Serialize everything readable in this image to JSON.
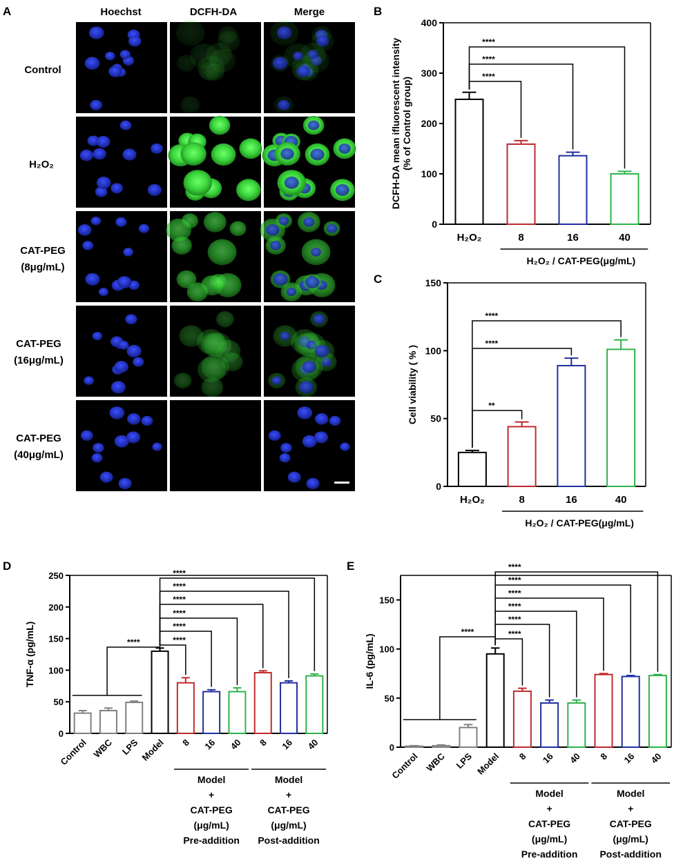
{
  "panel_letters": [
    "A",
    "B",
    "C",
    "D",
    "E"
  ],
  "microscopy": {
    "column_headers": [
      "Hoechst",
      "DCFH-DA",
      "Merge"
    ],
    "row_labels": [
      [
        "Control",
        ""
      ],
      [
        "H₂O₂",
        ""
      ],
      [
        "CAT-PEG",
        "(8μg/mL)"
      ],
      [
        "CAT-PEG",
        "(16μg/mL)"
      ],
      [
        "CAT-PEG",
        "(40μg/mL)"
      ]
    ],
    "green_intensity": [
      0.12,
      1.0,
      0.6,
      0.3,
      0.0
    ],
    "colors": {
      "nucleus": "#1a2ccc",
      "dcfh": "#3ad43a",
      "background": "#000000"
    }
  },
  "chart_data": [
    {
      "id": "B",
      "type": "bar",
      "categories": [
        "H₂O₂",
        "8",
        "16",
        "40"
      ],
      "values": [
        248,
        159,
        136,
        100
      ],
      "errors": [
        14,
        7,
        7,
        5
      ],
      "colors": [
        "#000000",
        "#c0282d",
        "#1f2e9e",
        "#2db34a"
      ],
      "ylabel": "DCFH-DA mean ifluorescent intensity",
      "ylabel2": "(% of Control group)",
      "ylim": [
        0,
        400
      ],
      "yticks": [
        0,
        100,
        200,
        300,
        400
      ],
      "group_label": "H₂O₂ / CAT-PEG(μg/mL)",
      "significance": [
        {
          "from": 0,
          "to": 1,
          "label": "****"
        },
        {
          "from": 0,
          "to": 2,
          "label": "****"
        },
        {
          "from": 0,
          "to": 3,
          "label": "****"
        }
      ]
    },
    {
      "id": "C",
      "type": "bar",
      "categories": [
        "H₂O₂",
        "8",
        "16",
        "40"
      ],
      "values": [
        25,
        44,
        89,
        101
      ],
      "errors": [
        1.5,
        3.5,
        5.5,
        7
      ],
      "colors": [
        "#000000",
        "#c0282d",
        "#1f2e9e",
        "#2db34a"
      ],
      "ylabel": "Cell viability ( % )",
      "ylim": [
        0,
        150
      ],
      "yticks": [
        0,
        50,
        100,
        150
      ],
      "group_label": "H₂O₂ / CAT-PEG(μg/mL)",
      "significance": [
        {
          "from": 0,
          "to": 1,
          "label": "**"
        },
        {
          "from": 0,
          "to": 2,
          "label": "****"
        },
        {
          "from": 0,
          "to": 3,
          "label": "****"
        }
      ]
    },
    {
      "id": "D",
      "type": "bar",
      "categories": [
        "Control",
        "WBC",
        "LPS",
        "Model",
        "8",
        "16",
        "40",
        "8",
        "16",
        "40"
      ],
      "values": [
        32,
        36,
        49,
        130,
        80,
        66,
        66,
        96,
        80,
        91
      ],
      "errors": [
        4,
        4,
        2,
        5,
        8,
        3,
        6,
        3,
        3,
        3
      ],
      "colors": [
        "#808080",
        "#808080",
        "#808080",
        "#000000",
        "#c0282d",
        "#1f2e9e",
        "#2db34a",
        "#c0282d",
        "#1f2e9e",
        "#2db34a"
      ],
      "ylabel": "TNF-α (pg/mL)",
      "ylim": [
        0,
        250
      ],
      "yticks": [
        0,
        50,
        100,
        150,
        200,
        250
      ],
      "group_labels": [
        {
          "from": 4,
          "to": 6,
          "lines": [
            "Model",
            "+",
            "CAT-PEG",
            "(μg/mL)",
            "Pre-addition"
          ]
        },
        {
          "from": 7,
          "to": 9,
          "lines": [
            "Model",
            "+",
            "CAT-PEG",
            "(μg/mL)",
            "Post-addition"
          ]
        }
      ],
      "significance": [
        {
          "from": 3,
          "to": 4,
          "label": "****"
        },
        {
          "from": 3,
          "to": 5,
          "label": "****"
        },
        {
          "from": 3,
          "to": 6,
          "label": "****"
        },
        {
          "from": 3,
          "to": 7,
          "label": "****"
        },
        {
          "from": 3,
          "to": 8,
          "label": "****"
        },
        {
          "from": 3,
          "to": 9,
          "label": "****"
        }
      ],
      "group_bracket": {
        "from": 0,
        "to": 2,
        "target": 3,
        "label": "****",
        "level": 60
      }
    },
    {
      "id": "E",
      "type": "bar",
      "categories": [
        "Control",
        "WBC",
        "LPS",
        "Model",
        "8",
        "16",
        "40",
        "8",
        "16",
        "40"
      ],
      "values": [
        1,
        1.5,
        20,
        95,
        57,
        45,
        45,
        74,
        72,
        73
      ],
      "errors": [
        0.5,
        0.8,
        3,
        6,
        3,
        3,
        3,
        1,
        1,
        1
      ],
      "colors": [
        "#808080",
        "#808080",
        "#808080",
        "#000000",
        "#c0282d",
        "#1f2e9e",
        "#2db34a",
        "#c0282d",
        "#1f2e9e",
        "#2db34a"
      ],
      "ylabel": "IL-6 (pg/mL)",
      "ylim": [
        0,
        175
      ],
      "yticks": [
        0,
        50,
        100,
        150
      ],
      "group_labels": [
        {
          "from": 4,
          "to": 6,
          "lines": [
            "Model",
            "+",
            "CAT-PEG",
            "(μg/mL)",
            "Pre-addition"
          ]
        },
        {
          "from": 7,
          "to": 9,
          "lines": [
            "Model",
            "+",
            "CAT-PEG",
            "(μg/mL)",
            "Post-addition"
          ]
        }
      ],
      "significance": [
        {
          "from": 3,
          "to": 4,
          "label": "****"
        },
        {
          "from": 3,
          "to": 5,
          "label": "****"
        },
        {
          "from": 3,
          "to": 6,
          "label": "****"
        },
        {
          "from": 3,
          "to": 7,
          "label": "****"
        },
        {
          "from": 3,
          "to": 8,
          "label": "****"
        },
        {
          "from": 3,
          "to": 9,
          "label": "****"
        }
      ],
      "group_bracket": {
        "from": 0,
        "to": 2,
        "target": 3,
        "label": "****",
        "level": 28
      }
    }
  ]
}
